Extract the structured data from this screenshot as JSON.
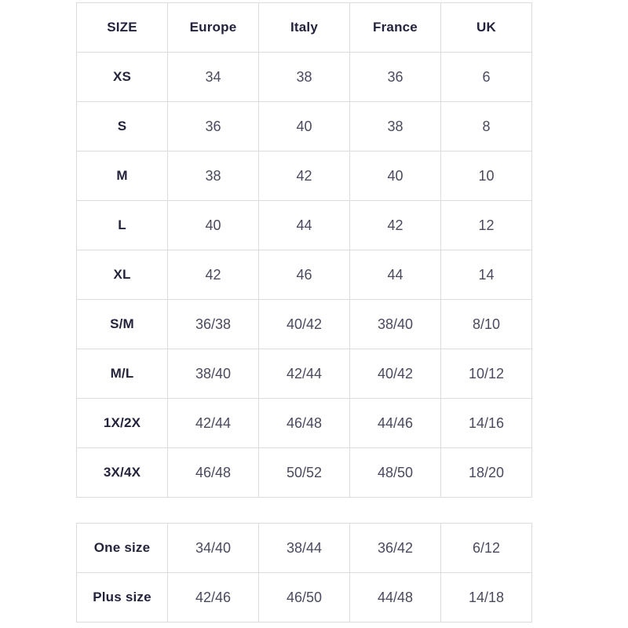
{
  "colors": {
    "background": "#ffffff",
    "border": "#dcdcdc",
    "label_text": "#23233c",
    "value_text": "#4a4a5e"
  },
  "main_table": {
    "columns": [
      "SIZE",
      "Europe",
      "Italy",
      "France",
      "UK"
    ],
    "rows": [
      {
        "label": "XS",
        "values": [
          "34",
          "38",
          "36",
          "6"
        ]
      },
      {
        "label": "S",
        "values": [
          "36",
          "40",
          "38",
          "8"
        ]
      },
      {
        "label": "M",
        "values": [
          "38",
          "42",
          "40",
          "10"
        ]
      },
      {
        "label": "L",
        "values": [
          "40",
          "44",
          "42",
          "12"
        ]
      },
      {
        "label": "XL",
        "values": [
          "42",
          "46",
          "44",
          "14"
        ]
      },
      {
        "label": "S/M",
        "values": [
          "36/38",
          "40/42",
          "38/40",
          "8/10"
        ]
      },
      {
        "label": "M/L",
        "values": [
          "38/40",
          "42/44",
          "40/42",
          "10/12"
        ]
      },
      {
        "label": "1X/2X",
        "values": [
          "42/44",
          "46/48",
          "44/46",
          "14/16"
        ]
      },
      {
        "label": "3X/4X",
        "values": [
          "46/48",
          "50/52",
          "48/50",
          "18/20"
        ]
      }
    ]
  },
  "special_table": {
    "rows": [
      {
        "label": "One size",
        "values": [
          "34/40",
          "38/44",
          "36/42",
          "6/12"
        ]
      },
      {
        "label": "Plus size",
        "values": [
          "42/46",
          "46/50",
          "44/48",
          "14/18"
        ]
      }
    ]
  }
}
